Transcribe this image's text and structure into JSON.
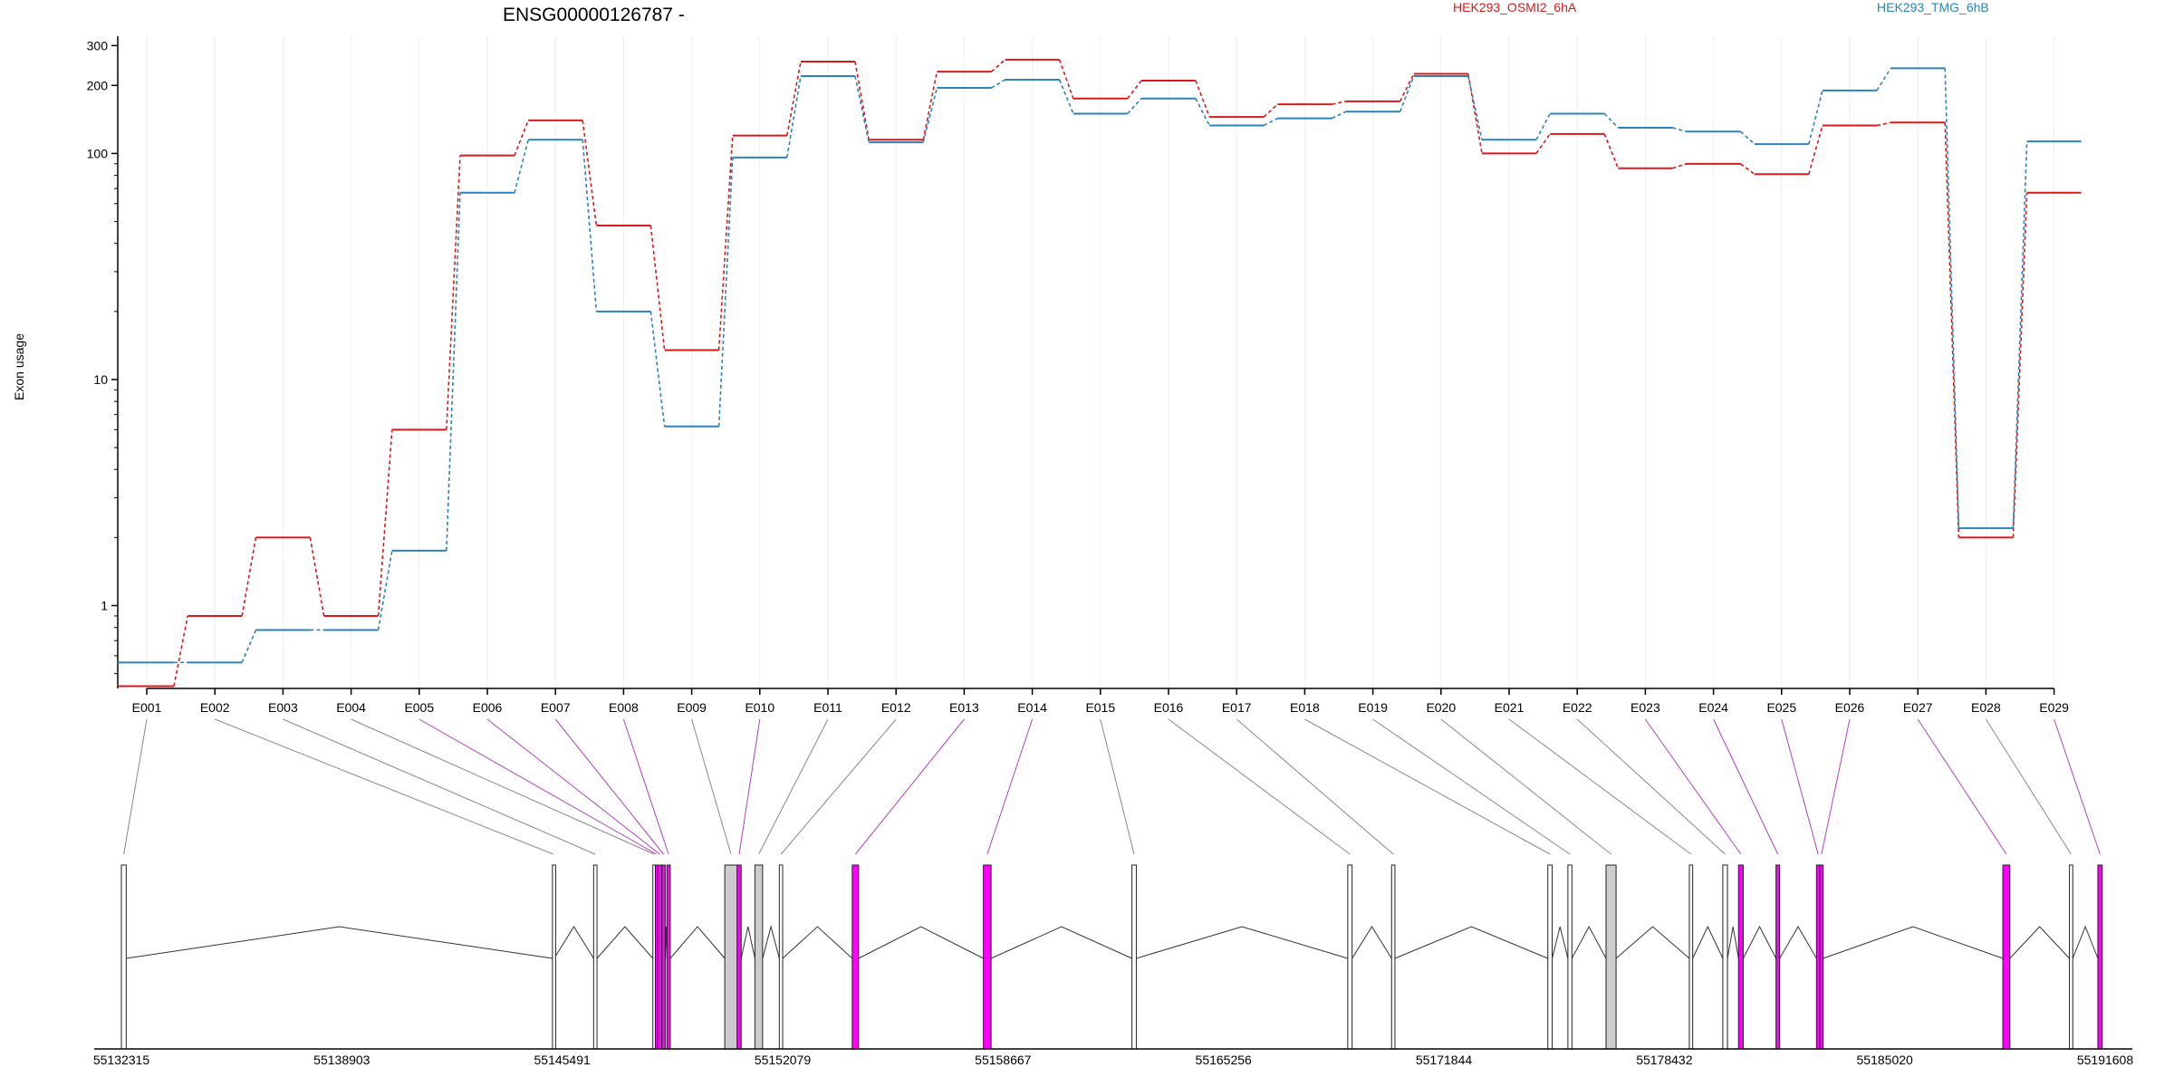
{
  "header": {
    "gene_label": "ENSG00000126787 -",
    "legend_a": "HEK293_OSMI2_6hA",
    "legend_b": "HEK293_TMG_6hB",
    "ylabel": "Exon usage"
  },
  "colors": {
    "series_a": "#d7191c",
    "series_b": "#2b83ba",
    "highlight_exon": "#ff00ff",
    "plain_exon": "#cccccc",
    "connector_plain": "#888888",
    "connector_highlight": "#b040c0",
    "gridline": "#eeeeee"
  },
  "chart_data": {
    "type": "line",
    "y_scale": "log",
    "ylim": [
      0.43,
      330
    ],
    "y_ticks": [
      1,
      10,
      100,
      200,
      300
    ],
    "y_tick_labels": [
      "1",
      "10",
      "100",
      "200",
      "300"
    ],
    "ylabel": "Exon usage",
    "categories": [
      "E001",
      "E002",
      "E003",
      "E004",
      "E005",
      "E006",
      "E007",
      "E008",
      "E009",
      "E010",
      "E011",
      "E012",
      "E013",
      "E014",
      "E015",
      "E016",
      "E017",
      "E018",
      "E019",
      "E020",
      "E021",
      "E022",
      "E023",
      "E024",
      "E025",
      "E026",
      "E027",
      "E028",
      "E029"
    ],
    "series": [
      {
        "name": "HEK293_OSMI2_6hA",
        "color": "#d7191c",
        "values": [
          0.44,
          0.9,
          2.0,
          0.9,
          6.0,
          98,
          140,
          48,
          13.5,
          120,
          255,
          115,
          230,
          260,
          175,
          210,
          145,
          165,
          170,
          225,
          100,
          122,
          86,
          90,
          81,
          133,
          137,
          2.0,
          67
        ]
      },
      {
        "name": "HEK293_TMG_6hB",
        "color": "#2b83ba",
        "values": [
          0.56,
          0.56,
          0.78,
          0.78,
          1.75,
          67,
          115,
          20,
          6.2,
          96,
          220,
          112,
          195,
          212,
          150,
          175,
          133,
          143,
          153,
          220,
          115,
          150,
          130,
          125,
          110,
          190,
          238,
          2.2,
          113
        ]
      }
    ],
    "gene_model": {
      "coordinate_range": [
        55132315,
        55191608
      ],
      "coordinate_ticks": [
        "55132315",
        "55138903",
        "55145491",
        "55152079",
        "55158667",
        "55165256",
        "55171844",
        "55178432",
        "55185020",
        "55191608"
      ],
      "exons": [
        {
          "id": "E001",
          "start": 55132315,
          "end": 55132460,
          "highlight": false
        },
        {
          "id": "E002",
          "start": 55145200,
          "end": 55145250,
          "highlight": false
        },
        {
          "id": "E003",
          "start": 55146430,
          "end": 55146530,
          "highlight": false
        },
        {
          "id": "E004",
          "start": 55148200,
          "end": 55148275,
          "highlight": false
        },
        {
          "id": "E005",
          "start": 55148275,
          "end": 55148340,
          "highlight": true
        },
        {
          "id": "E006",
          "start": 55148340,
          "end": 55148470,
          "highlight": true
        },
        {
          "id": "E007",
          "start": 55148470,
          "end": 55148570,
          "highlight": true
        },
        {
          "id": "E008",
          "start": 55148620,
          "end": 55148720,
          "highlight": true
        },
        {
          "id": "E009",
          "start": 55150350,
          "end": 55150720,
          "highlight": false
        },
        {
          "id": "E010",
          "start": 55150720,
          "end": 55150840,
          "highlight": true
        },
        {
          "id": "E011",
          "start": 55151250,
          "end": 55151480,
          "highlight": false
        },
        {
          "id": "E012",
          "start": 55151980,
          "end": 55152080,
          "highlight": false
        },
        {
          "id": "E013",
          "start": 55154160,
          "end": 55154350,
          "highlight": true
        },
        {
          "id": "E014",
          "start": 55158080,
          "end": 55158310,
          "highlight": true
        },
        {
          "id": "E015",
          "start": 55162520,
          "end": 55162650,
          "highlight": false
        },
        {
          "id": "E016",
          "start": 55168970,
          "end": 55169100,
          "highlight": false
        },
        {
          "id": "E017",
          "start": 55170280,
          "end": 55170380,
          "highlight": false
        },
        {
          "id": "E018",
          "start": 55174950,
          "end": 55175080,
          "highlight": false
        },
        {
          "id": "E019",
          "start": 55175550,
          "end": 55175670,
          "highlight": false
        },
        {
          "id": "E020",
          "start": 55176690,
          "end": 55176990,
          "highlight": false
        },
        {
          "id": "E021",
          "start": 55179180,
          "end": 55179280,
          "highlight": false
        },
        {
          "id": "E022",
          "start": 55180180,
          "end": 55180320,
          "highlight": false
        },
        {
          "id": "E023",
          "start": 55180650,
          "end": 55180790,
          "highlight": true
        },
        {
          "id": "E024",
          "start": 55181770,
          "end": 55181880,
          "highlight": true
        },
        {
          "id": "E025",
          "start": 55182980,
          "end": 55183080,
          "highlight": true
        },
        {
          "id": "E026",
          "start": 55183080,
          "end": 55183180,
          "highlight": true
        },
        {
          "id": "E027",
          "start": 55188550,
          "end": 55188760,
          "highlight": true
        },
        {
          "id": "E028",
          "start": 55190540,
          "end": 55190640,
          "highlight": false
        },
        {
          "id": "E029",
          "start": 55191390,
          "end": 55191520,
          "highlight": true
        }
      ]
    }
  }
}
